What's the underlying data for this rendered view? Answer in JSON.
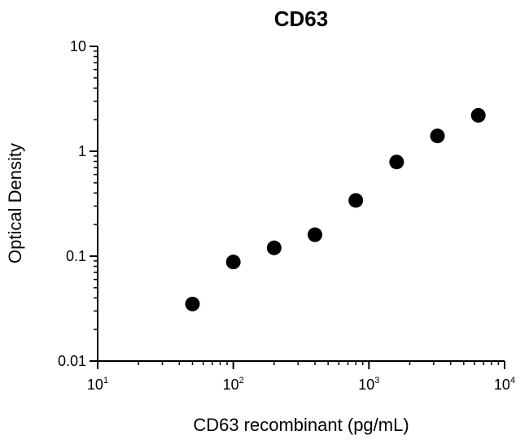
{
  "chart_data": {
    "type": "scatter",
    "title": "CD63",
    "xlabel": "CD63 recombinant (pg/mL)",
    "ylabel": "Optical Density",
    "xscale": "log",
    "yscale": "log",
    "xlim": [
      10,
      10000
    ],
    "ylim": [
      0.01,
      10
    ],
    "grid": false,
    "marker_color": "#000000",
    "x_ticks": [
      {
        "value": 10,
        "base": "10",
        "exp": "1"
      },
      {
        "value": 100,
        "base": "10",
        "exp": "2"
      },
      {
        "value": 1000,
        "base": "10",
        "exp": "3"
      },
      {
        "value": 10000,
        "base": "10",
        "exp": "4"
      }
    ],
    "y_ticks": [
      {
        "value": 0.01,
        "label": "0.01"
      },
      {
        "value": 0.1,
        "label": "0.1"
      },
      {
        "value": 1,
        "label": "1"
      },
      {
        "value": 10,
        "label": "10"
      }
    ],
    "points": [
      {
        "x": 50,
        "y": 0.035
      },
      {
        "x": 100,
        "y": 0.088
      },
      {
        "x": 200,
        "y": 0.12
      },
      {
        "x": 400,
        "y": 0.16
      },
      {
        "x": 800,
        "y": 0.34
      },
      {
        "x": 1600,
        "y": 0.79
      },
      {
        "x": 3200,
        "y": 1.4
      },
      {
        "x": 6400,
        "y": 2.2
      }
    ]
  }
}
